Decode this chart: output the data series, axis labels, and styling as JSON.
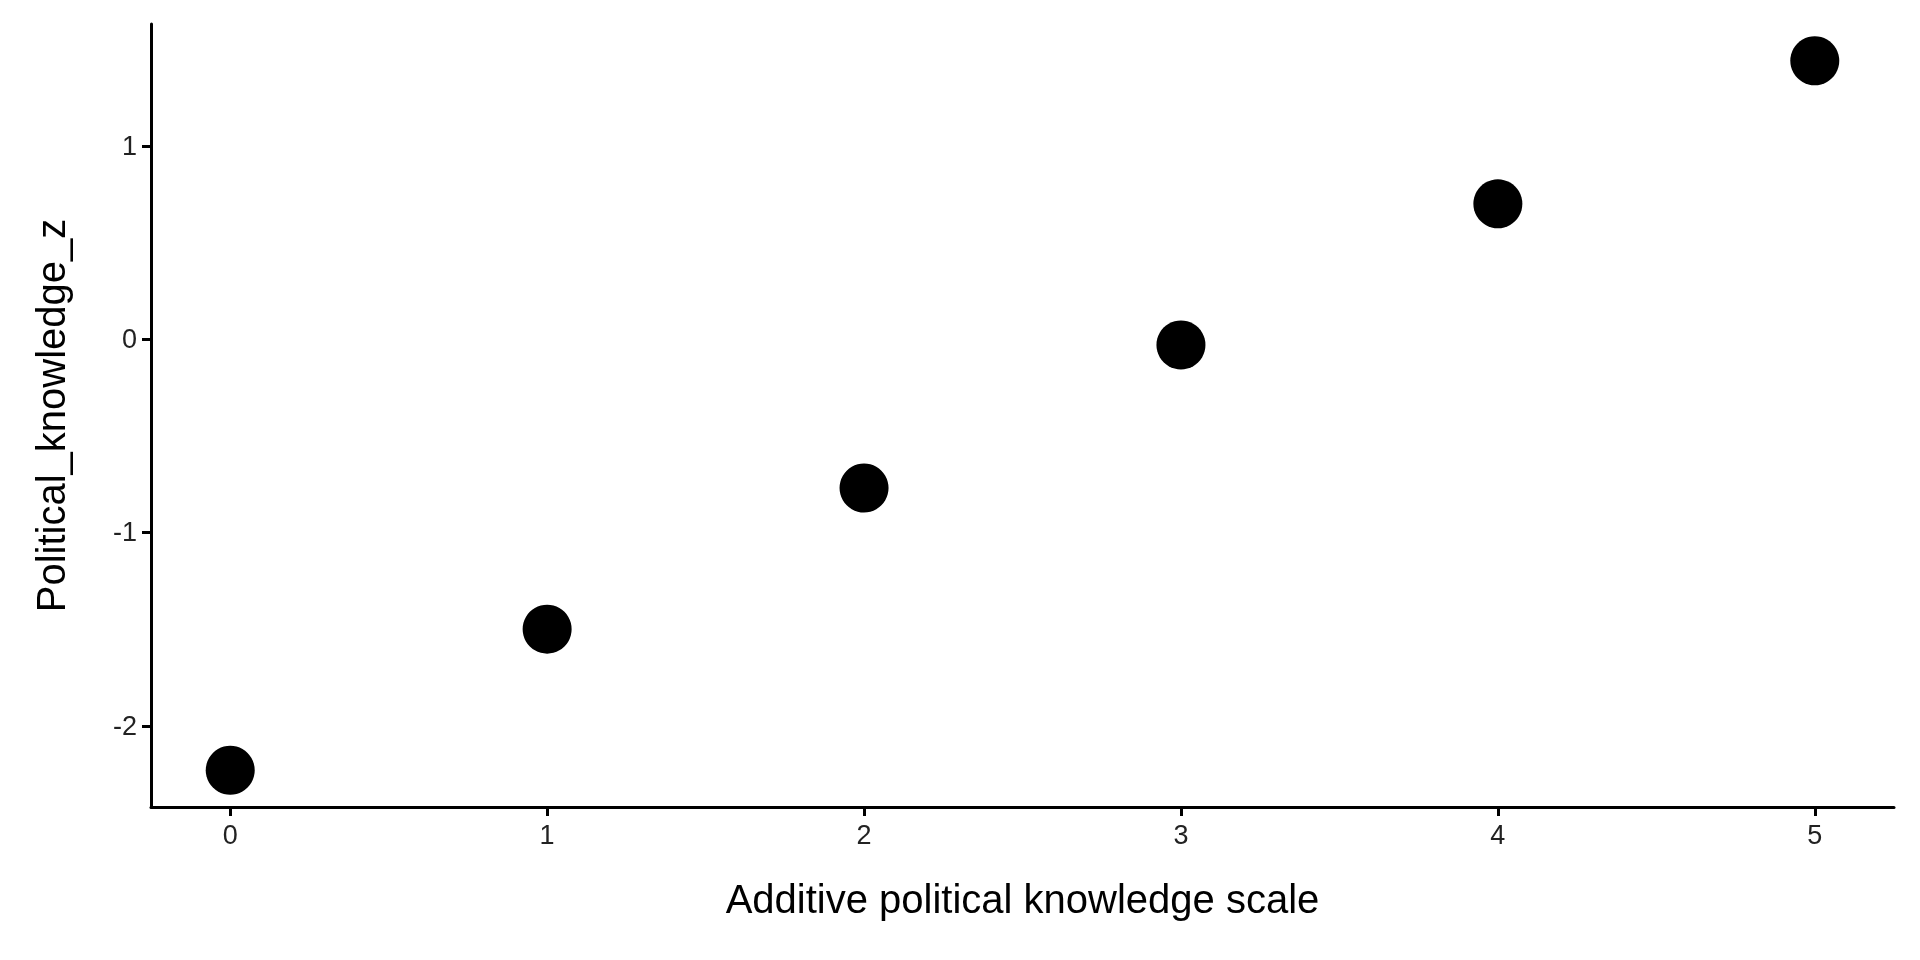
{
  "chart_data": {
    "type": "scatter",
    "xlabel": "Additive political knowledge scale",
    "ylabel": "Political_knowledge_z",
    "x": [
      0,
      1,
      2,
      3,
      4,
      5
    ],
    "values": [
      -2.23,
      -1.5,
      -0.77,
      -0.03,
      0.7,
      1.44
    ],
    "color": "#000000",
    "marker": "circle",
    "xlim": [
      -0.25,
      5.25
    ],
    "xticks": [
      0,
      1,
      2,
      3,
      4,
      5
    ],
    "ylim": [
      -2.42,
      1.63
    ],
    "yticks": [
      -2,
      -1,
      0,
      1
    ],
    "grid": false
  }
}
